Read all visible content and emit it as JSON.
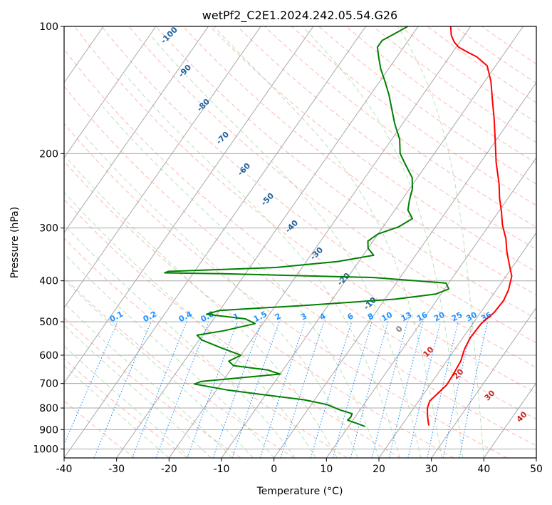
{
  "chart_data": {
    "type": "line",
    "title": "wetPf2_C2E1.2024.242.05.54.G26",
    "xlabel": "Temperature (°C)",
    "ylabel": "Pressure (hPa)",
    "xlim": [
      -40,
      50
    ],
    "ylim": [
      1050,
      100
    ],
    "y_scale": "log",
    "x_ticks": [
      -40,
      -30,
      -20,
      -10,
      0,
      10,
      20,
      30,
      40,
      50
    ],
    "y_ticks": [
      100,
      200,
      300,
      400,
      500,
      600,
      700,
      800,
      900,
      1000
    ],
    "skew": true,
    "grid": true,
    "series": [
      {
        "color": "#ff0000",
        "points": [
          [
            25.2,
            880
          ],
          [
            24.5,
            860
          ],
          [
            23.5,
            830
          ],
          [
            22.6,
            800
          ],
          [
            22.1,
            770
          ],
          [
            22.6,
            740
          ],
          [
            23.2,
            705
          ],
          [
            23.0,
            660
          ],
          [
            22.7,
            620
          ],
          [
            21.8,
            580
          ],
          [
            21.4,
            545
          ],
          [
            21.6,
            505
          ],
          [
            22.6,
            475
          ],
          [
            22.8,
            445
          ],
          [
            22.3,
            420
          ],
          [
            21.1,
            390
          ],
          [
            19.0,
            365
          ],
          [
            16.8,
            340
          ],
          [
            15.0,
            318
          ],
          [
            12.5,
            295
          ],
          [
            10.6,
            275
          ],
          [
            8.4,
            255
          ],
          [
            6.4,
            236
          ],
          [
            3.0,
            210
          ],
          [
            -0.3,
            185
          ],
          [
            -3.3,
            165
          ],
          [
            -6.3,
            148
          ],
          [
            -8.8,
            135
          ],
          [
            -11.6,
            124
          ],
          [
            -14.8,
            118
          ],
          [
            -17.2,
            115
          ],
          [
            -19.5,
            112
          ],
          [
            -21.0,
            109
          ],
          [
            -22.5,
            105
          ],
          [
            -23.8,
            100
          ]
        ]
      },
      {
        "color": "#008000",
        "points": [
          [
            13.2,
            885
          ],
          [
            11.2,
            870
          ],
          [
            9.0,
            855
          ],
          [
            9.2,
            840
          ],
          [
            9.0,
            825
          ],
          [
            6.4,
            810
          ],
          [
            3.0,
            785
          ],
          [
            -2.0,
            765
          ],
          [
            -10.0,
            745
          ],
          [
            -18.0,
            725
          ],
          [
            -25.0,
            702
          ],
          [
            -24.0,
            692
          ],
          [
            -10.0,
            665
          ],
          [
            -13.0,
            650
          ],
          [
            -20.0,
            635
          ],
          [
            -21.5,
            620
          ],
          [
            -20.0,
            600
          ],
          [
            -25.0,
            575
          ],
          [
            -29.5,
            552
          ],
          [
            -31.0,
            538
          ],
          [
            -26.5,
            525
          ],
          [
            -21.5,
            505
          ],
          [
            -24.0,
            492
          ],
          [
            -32.0,
            480
          ],
          [
            -30.0,
            470
          ],
          [
            -15.0,
            458
          ],
          [
            2.0,
            442
          ],
          [
            9.0,
            430
          ],
          [
            10.8,
            418
          ],
          [
            9.5,
            405
          ],
          [
            -5.0,
            393
          ],
          [
            -33.5,
            385
          ],
          [
            -45.5,
            383
          ],
          [
            -45.0,
            380
          ],
          [
            -25.0,
            372
          ],
          [
            -14.0,
            360
          ],
          [
            -8.0,
            348
          ],
          [
            -10.0,
            335
          ],
          [
            -11.0,
            322
          ],
          [
            -10.0,
            310
          ],
          [
            -7.0,
            298
          ],
          [
            -5.5,
            285
          ],
          [
            -7.5,
            272
          ],
          [
            -8.5,
            258
          ],
          [
            -9.5,
            242
          ],
          [
            -11.0,
            228
          ],
          [
            -13.5,
            215
          ],
          [
            -16.5,
            200
          ],
          [
            -18.5,
            185
          ],
          [
            -21.5,
            170
          ],
          [
            -24.0,
            157
          ],
          [
            -26.5,
            145
          ],
          [
            -29.0,
            135
          ],
          [
            -31.5,
            126
          ],
          [
            -33.5,
            118
          ],
          [
            -35.0,
            112
          ],
          [
            -35.0,
            108
          ],
          [
            -33.5,
            104
          ],
          [
            -32.0,
            100
          ]
        ]
      }
    ],
    "mixing_ratio_labels": [
      "0.1",
      "0.2",
      "0.4",
      "0.6",
      "1",
      "1.5",
      "2",
      "3",
      "4",
      "6",
      "8",
      "10",
      "13",
      "16",
      "20",
      "25",
      "30",
      "36"
    ],
    "dry_adiabat_labels": [
      "-100",
      "-90",
      "-80",
      "-70",
      "-60",
      "-50",
      "-40",
      "-30",
      "-20",
      "-10",
      "0",
      "10",
      "20",
      "30",
      "40"
    ],
    "colors": {
      "temperature": "#ff0000",
      "dewpoint": "#008000",
      "mixing_ratio": "#1e90ff",
      "dry_adiabat": "#fa8072",
      "moist_adiabat": "#90c990",
      "isotherm": "#a9a9a9",
      "dry_adiabat_label": "#1f5f9f",
      "positive_label": "#cc2222",
      "zero_label": "#808080"
    }
  }
}
